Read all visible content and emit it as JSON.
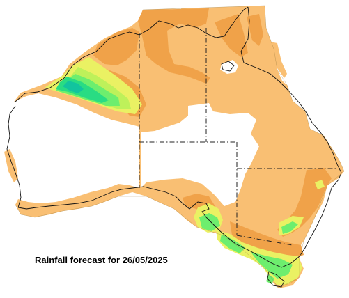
{
  "map": {
    "caption": "Rainfall forecast for 26/05/2025",
    "region": "Australia",
    "colors": {
      "light_orange": "#f9bf73",
      "dark_orange": "#f0a249",
      "yellow": "#eaf163",
      "yellow_green": "#bef15a",
      "light_green": "#6dee6e",
      "green": "#29dc83",
      "teal": "#12c49e",
      "background": "#ffffff",
      "coastline": "#000000"
    }
  }
}
